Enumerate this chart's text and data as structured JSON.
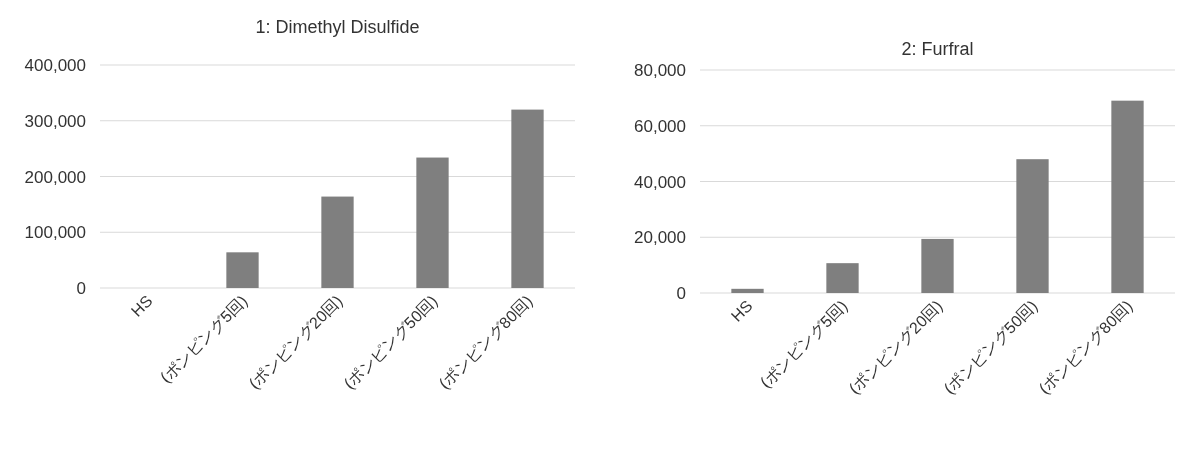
{
  "chart_data": [
    {
      "type": "bar",
      "title": "1: Dimethyl Disulfide",
      "categories": [
        "HS",
        "(ポンピング5回)",
        "(ポンピング20回)",
        "(ポンピング50回)",
        "(ポンピング80回)"
      ],
      "values": [
        0,
        64000,
        164000,
        234000,
        320000
      ],
      "color": "#7f7f7f",
      "ylim": [
        0,
        400000
      ],
      "yticks": [
        {
          "value": 0,
          "label": "0"
        },
        {
          "value": 100000,
          "label": "100,000"
        },
        {
          "value": 200000,
          "label": "200,000"
        },
        {
          "value": 300000,
          "label": "300,000"
        },
        {
          "value": 400000,
          "label": "400,000"
        }
      ],
      "grid": "y"
    },
    {
      "type": "bar",
      "title": "2: Furfral",
      "categories": [
        "HS",
        "(ポンピング5回)",
        "(ポンピング20回)",
        "(ポンピング50回)",
        "(ポンピング80回)"
      ],
      "values": [
        1500,
        10700,
        19400,
        48000,
        69000
      ],
      "color": "#7f7f7f",
      "ylim": [
        0,
        80000
      ],
      "yticks": [
        {
          "value": 0,
          "label": "0"
        },
        {
          "value": 20000,
          "label": "20,000"
        },
        {
          "value": 40000,
          "label": "40,000"
        },
        {
          "value": 60000,
          "label": "60,000"
        },
        {
          "value": 80000,
          "label": "80,000"
        }
      ],
      "grid": "y"
    }
  ]
}
